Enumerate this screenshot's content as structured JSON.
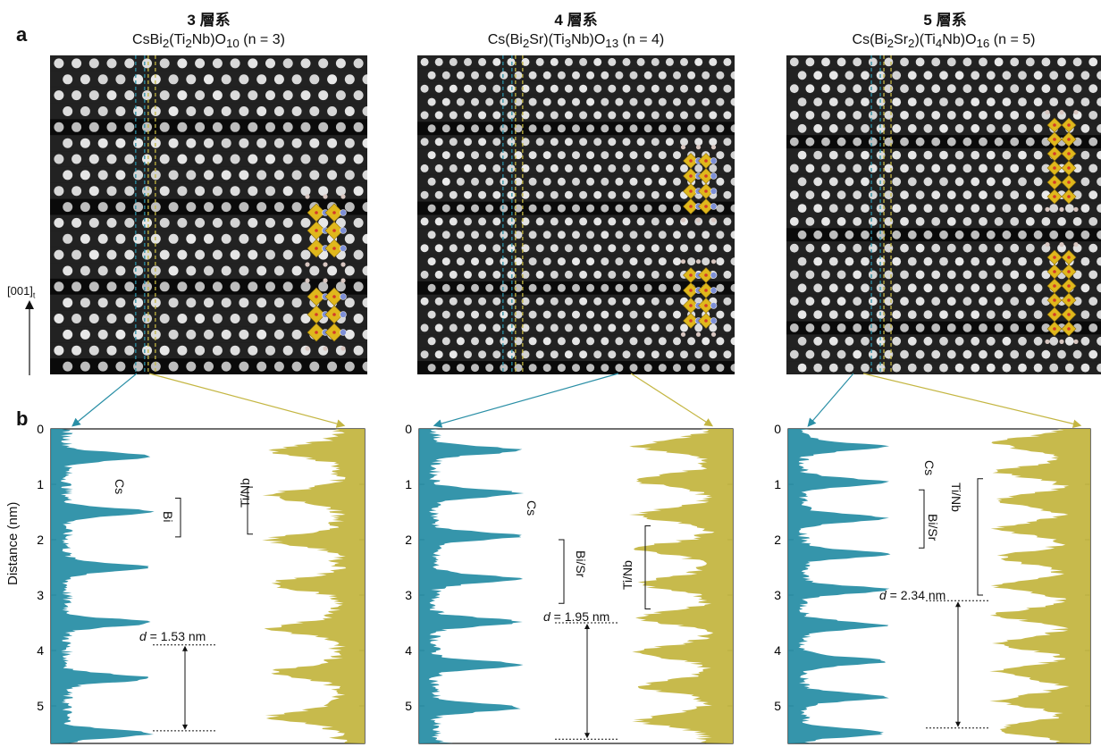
{
  "figure": {
    "panel_labels": [
      "a",
      "b"
    ],
    "crystal_direction": "[001]",
    "crystal_direction_sub": "t",
    "y_axis_label": "Distance (nm)",
    "y_ticks": [
      "0",
      "1",
      "2",
      "3",
      "4",
      "5"
    ],
    "colors": {
      "cyan_profile": "#2a8fa6",
      "gold_profile": "#c4b642",
      "bi_atom": "#7d8fd6",
      "octahedron": "#e0b81c",
      "oxygen": "#d33a2a"
    },
    "panels": [
      {
        "title": "3 層系",
        "formula_parts": [
          "CsBi",
          "2",
          "(Ti",
          "2",
          "Nb)O",
          "10",
          " (n = 3)"
        ],
        "annotations": {
          "a1": "Cs",
          "a2": "Bi",
          "a3": "Ti/Nb"
        },
        "d_label_prefix": "d",
        "d_label_value": " = 1.53 nm"
      },
      {
        "title": "4 層系",
        "formula_parts": [
          "Cs(Bi",
          "2",
          "Sr)(Ti",
          "3",
          "Nb)O",
          "13",
          " (n = 4)"
        ],
        "annotations": {
          "a1": "Cs",
          "a2": "Bi/Sr",
          "a3": "Ti/Nb"
        },
        "d_label_prefix": "d",
        "d_label_value": " = 1.95 nm"
      },
      {
        "title": "5 層系",
        "formula_parts": [
          "Cs(Bi",
          "2",
          "Sr",
          "2",
          ")(Ti",
          "4",
          "Nb)O",
          "16",
          " (n = 5)"
        ],
        "annotations": {
          "a1": "Cs",
          "a2": "Bi/Sr",
          "a3": "Ti/Nb"
        },
        "d_label_prefix": "d",
        "d_label_value": " = 2.34 nm"
      }
    ]
  }
}
